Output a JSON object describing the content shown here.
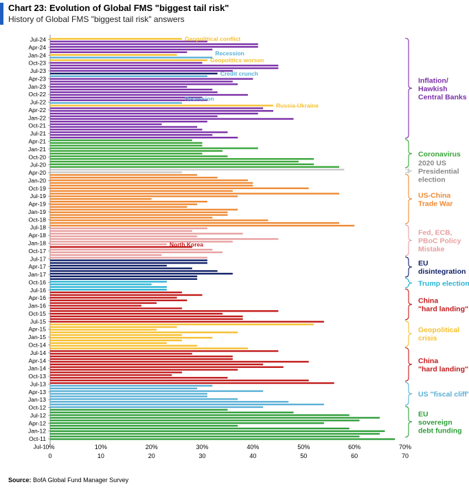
{
  "header": {
    "title": "Chart 23: Evolution of Global FMS \"biggest tail risk\"",
    "subtitle": "History of Global FMS \"biggest tail risk\" answers"
  },
  "footer": {
    "source_label": "Source:",
    "source_text": "BofA Global Fund Manager Survey"
  },
  "colors": {
    "inflation": "#7b2fa8",
    "covid": "#3aa63a",
    "election": "#c8c8c8",
    "tradewar": "#ee8a35",
    "policy": "#e8a0a0",
    "eu": "#0f1f66",
    "trump": "#2ab4d4",
    "china": "#c21a1a",
    "geo": "#f5c030",
    "fiscal": "#5ab0d6",
    "eusov": "#2f9e3a"
  },
  "chart_data": {
    "type": "bar",
    "orientation": "horizontal",
    "x_axis": {
      "min": 0,
      "max": 70,
      "ticks": [
        "0%",
        "10%",
        "20%",
        "30%",
        "40%",
        "50%",
        "60%",
        "70%"
      ]
    },
    "y_tick_labels": [
      "Jul-24",
      "Apr-24",
      "Jan-24",
      "Oct-23",
      "Jul-23",
      "Apr-23",
      "Jan-23",
      "Oct-22",
      "Jul-22",
      "Apr-22",
      "Jan-22",
      "Oct-21",
      "Jul-21",
      "Apr-21",
      "Jan-21",
      "Oct-20",
      "Jul-20",
      "Apr-20",
      "Jan-20",
      "Oct-19",
      "Jul-19",
      "Apr-19",
      "Jan-19",
      "Oct-18",
      "Jul-18",
      "Apr-18",
      "Jan-18",
      "Oct-17",
      "Jul-17",
      "Apr-17",
      "Jan-17",
      "Oct-16",
      "Jul-16",
      "Apr-16",
      "Jan-16",
      "Oct-15",
      "Jul-15",
      "Apr-15",
      "Jan-15",
      "Oct-14",
      "Jul-14",
      "Apr-14",
      "Jan-14",
      "Oct-13",
      "Jul-13",
      "Apr-13",
      "Jan-13",
      "Oct-12",
      "Jul-12",
      "Apr-12",
      "Jan-12",
      "Oct-11",
      "Jul-1"
    ],
    "bars": [
      {
        "v": 26,
        "c": "geo"
      },
      {
        "v": 31,
        "c": "inflation"
      },
      {
        "v": 41,
        "c": "inflation"
      },
      {
        "v": 41,
        "c": "inflation"
      },
      {
        "v": 32,
        "c": "inflation"
      },
      {
        "v": 27,
        "c": "inflation"
      },
      {
        "v": 25,
        "c": "geo"
      },
      {
        "v": 32,
        "c": "fiscal"
      },
      {
        "v": 31,
        "c": "geo"
      },
      {
        "v": 30,
        "c": "inflation"
      },
      {
        "v": 45,
        "c": "inflation"
      },
      {
        "v": 45,
        "c": "inflation"
      },
      {
        "v": 36,
        "c": "inflation"
      },
      {
        "v": 33,
        "c": "eu"
      },
      {
        "v": 31,
        "c": "fiscal"
      },
      {
        "v": 40,
        "c": "inflation"
      },
      {
        "v": 36,
        "c": "inflation"
      },
      {
        "v": 37,
        "c": "inflation"
      },
      {
        "v": 27,
        "c": "inflation"
      },
      {
        "v": 32,
        "c": "inflation"
      },
      {
        "v": 33,
        "c": "inflation"
      },
      {
        "v": 39,
        "c": "inflation"
      },
      {
        "v": 30,
        "c": "inflation"
      },
      {
        "v": 31,
        "c": "inflation"
      },
      {
        "v": 26,
        "c": "fiscal"
      },
      {
        "v": 44,
        "c": "geo"
      },
      {
        "v": 42,
        "c": "inflation"
      },
      {
        "v": 44,
        "c": "inflation"
      },
      {
        "v": 41,
        "c": "inflation"
      },
      {
        "v": 33,
        "c": "inflation"
      },
      {
        "v": 48,
        "c": "inflation"
      },
      {
        "v": 31,
        "c": "inflation"
      },
      {
        "v": 22,
        "c": "inflation"
      },
      {
        "v": 29,
        "c": "inflation"
      },
      {
        "v": 30,
        "c": "inflation"
      },
      {
        "v": 35,
        "c": "inflation"
      },
      {
        "v": 32,
        "c": "inflation"
      },
      {
        "v": 37,
        "c": "inflation"
      },
      {
        "v": 28,
        "c": "covid"
      },
      {
        "v": 30,
        "c": "covid"
      },
      {
        "v": 30,
        "c": "covid"
      },
      {
        "v": 41,
        "c": "covid"
      },
      {
        "v": 34,
        "c": "covid"
      },
      {
        "v": 30,
        "c": "covid"
      },
      {
        "v": 35,
        "c": "covid"
      },
      {
        "v": 52,
        "c": "covid"
      },
      {
        "v": 49,
        "c": "covid"
      },
      {
        "v": 52,
        "c": "covid"
      },
      {
        "v": 57,
        "c": "covid"
      },
      {
        "v": 58,
        "c": "election"
      },
      {
        "v": 26,
        "c": "election"
      },
      {
        "v": 29,
        "c": "tradewar"
      },
      {
        "v": 33,
        "c": "tradewar"
      },
      {
        "v": 39,
        "c": "tradewar"
      },
      {
        "v": 40,
        "c": "tradewar"
      },
      {
        "v": 40,
        "c": "tradewar"
      },
      {
        "v": 51,
        "c": "tradewar"
      },
      {
        "v": 36,
        "c": "tradewar"
      },
      {
        "v": 57,
        "c": "tradewar"
      },
      {
        "v": 37,
        "c": "tradewar"
      },
      {
        "v": 20,
        "c": "tradewar"
      },
      {
        "v": 31,
        "c": "tradewar"
      },
      {
        "v": 29,
        "c": "tradewar"
      },
      {
        "v": 27,
        "c": "tradewar"
      },
      {
        "v": 37,
        "c": "tradewar"
      },
      {
        "v": 35,
        "c": "tradewar"
      },
      {
        "v": 35,
        "c": "tradewar"
      },
      {
        "v": 32,
        "c": "tradewar"
      },
      {
        "v": 43,
        "c": "tradewar"
      },
      {
        "v": 57,
        "c": "tradewar"
      },
      {
        "v": 60,
        "c": "tradewar"
      },
      {
        "v": 31,
        "c": "policy"
      },
      {
        "v": 28,
        "c": "policy"
      },
      {
        "v": 38,
        "c": "policy"
      },
      {
        "v": 29,
        "c": "policy"
      },
      {
        "v": 45,
        "c": "policy"
      },
      {
        "v": 36,
        "c": "policy"
      },
      {
        "v": 23,
        "c": "policy"
      },
      {
        "v": 28,
        "c": "china"
      },
      {
        "v": 32,
        "c": "policy"
      },
      {
        "v": 34,
        "c": "policy"
      },
      {
        "v": 22,
        "c": "policy"
      },
      {
        "v": 31,
        "c": "policy"
      },
      {
        "v": 31,
        "c": "eu"
      },
      {
        "v": 31,
        "c": "eu"
      },
      {
        "v": 23,
        "c": "eu"
      },
      {
        "v": 28,
        "c": "eu"
      },
      {
        "v": 33,
        "c": "eu"
      },
      {
        "v": 36,
        "c": "eu"
      },
      {
        "v": 29,
        "c": "eu"
      },
      {
        "v": 29,
        "c": "eu"
      },
      {
        "v": 23,
        "c": "trump"
      },
      {
        "v": 20,
        "c": "trump"
      },
      {
        "v": 23,
        "c": "trump"
      },
      {
        "v": 23,
        "c": "trump"
      },
      {
        "v": 26,
        "c": "china"
      },
      {
        "v": 30,
        "c": "china"
      },
      {
        "v": 25,
        "c": "china"
      },
      {
        "v": 27,
        "c": "china"
      },
      {
        "v": 21,
        "c": "china"
      },
      {
        "v": 18,
        "c": "china"
      },
      {
        "v": 26,
        "c": "china"
      },
      {
        "v": 45,
        "c": "china"
      },
      {
        "v": 34,
        "c": "china"
      },
      {
        "v": 38,
        "c": "china"
      },
      {
        "v": 38,
        "c": "china"
      },
      {
        "v": 54,
        "c": "china"
      },
      {
        "v": 52,
        "c": "geo"
      },
      {
        "v": 25,
        "c": "geo"
      },
      {
        "v": 21,
        "c": "geo"
      },
      {
        "v": 37,
        "c": "geo"
      },
      {
        "v": 26,
        "c": "geo"
      },
      {
        "v": 32,
        "c": "geo"
      },
      {
        "v": 26,
        "c": "geo"
      },
      {
        "v": 23,
        "c": "geo"
      },
      {
        "v": 29,
        "c": "geo"
      },
      {
        "v": 39,
        "c": "geo"
      },
      {
        "v": 45,
        "c": "china"
      },
      {
        "v": 28,
        "c": "china"
      },
      {
        "v": 36,
        "c": "china"
      },
      {
        "v": 36,
        "c": "china"
      },
      {
        "v": 51,
        "c": "china"
      },
      {
        "v": 42,
        "c": "china"
      },
      {
        "v": 46,
        "c": "china"
      },
      {
        "v": 37,
        "c": "china"
      },
      {
        "v": 26,
        "c": "china"
      },
      {
        "v": 24,
        "c": "china"
      },
      {
        "v": 35,
        "c": "china"
      },
      {
        "v": 51,
        "c": "china"
      },
      {
        "v": 56,
        "c": "china"
      },
      {
        "v": 32,
        "c": "fiscal"
      },
      {
        "v": 29,
        "c": "fiscal"
      },
      {
        "v": 42,
        "c": "fiscal"
      },
      {
        "v": 31,
        "c": "fiscal"
      },
      {
        "v": 31,
        "c": "fiscal"
      },
      {
        "v": 37,
        "c": "fiscal"
      },
      {
        "v": 47,
        "c": "fiscal"
      },
      {
        "v": 54,
        "c": "fiscal"
      },
      {
        "v": 42,
        "c": "fiscal"
      },
      {
        "v": 35,
        "c": "eusov"
      },
      {
        "v": 48,
        "c": "eusov"
      },
      {
        "v": 59,
        "c": "eusov"
      },
      {
        "v": 65,
        "c": "eusov"
      },
      {
        "v": 61,
        "c": "eusov"
      },
      {
        "v": 54,
        "c": "eusov"
      },
      {
        "v": 37,
        "c": "eusov"
      },
      {
        "v": 59,
        "c": "eusov"
      },
      {
        "v": 66,
        "c": "eusov"
      },
      {
        "v": 65,
        "c": "eusov"
      },
      {
        "v": 61,
        "c": "eusov"
      },
      {
        "v": 68,
        "c": "eusov"
      }
    ],
    "inline_labels": [
      {
        "text": "Geopolitical conflict",
        "bar": 0,
        "c": "geo"
      },
      {
        "text": "Recession",
        "bar": 7,
        "c": "fiscal",
        "above": true
      },
      {
        "text": "Geopolitics worsen",
        "bar": 8,
        "c": "geo"
      },
      {
        "text": "Credit crunch",
        "bar": 13,
        "c": "fiscal"
      },
      {
        "text": "Recession",
        "bar": 24,
        "c": "fiscal",
        "above": true
      },
      {
        "text": "Russia-Ukraine",
        "bar": 25,
        "c": "geo"
      },
      {
        "text": "North Korea",
        "bar": 77,
        "c": "china"
      }
    ],
    "groups": [
      {
        "label": "Inflation/\nHawkish\nCentral Banks",
        "c": "inflation",
        "from": 0,
        "to": 37
      },
      {
        "label": "Coronavirus",
        "c": "covid",
        "from": 38,
        "to": 48
      },
      {
        "label": "2020 US\nPresidential\nelection",
        "c": "election",
        "from": 49,
        "to": 50
      },
      {
        "label": "US-China\nTrade War",
        "c": "tradewar",
        "from": 51,
        "to": 69
      },
      {
        "label": "Fed, ECB,\nPBoC Policy\nMistake",
        "c": "policy",
        "from": 70,
        "to": 81
      },
      {
        "label": "EU\ndisintegration",
        "c": "eu",
        "from": 82,
        "to": 89
      },
      {
        "label": "Trump election",
        "c": "trump",
        "from": 90,
        "to": 93
      },
      {
        "label": "China\n\"hard landing\"",
        "c": "china",
        "from": 94,
        "to": 105
      },
      {
        "label": "Geopolitical\ncrisis",
        "c": "geo",
        "from": 106,
        "to": 115
      },
      {
        "label": "China\n\"hard landing\"",
        "c": "china",
        "from": 116,
        "to": 128
      },
      {
        "label": "US \"fiscal cliff\"",
        "c": "fiscal",
        "from": 129,
        "to": 137
      },
      {
        "label": "EU\nsovereign\ndebt funding",
        "c": "eusov",
        "from": 138,
        "to": 149
      }
    ]
  }
}
